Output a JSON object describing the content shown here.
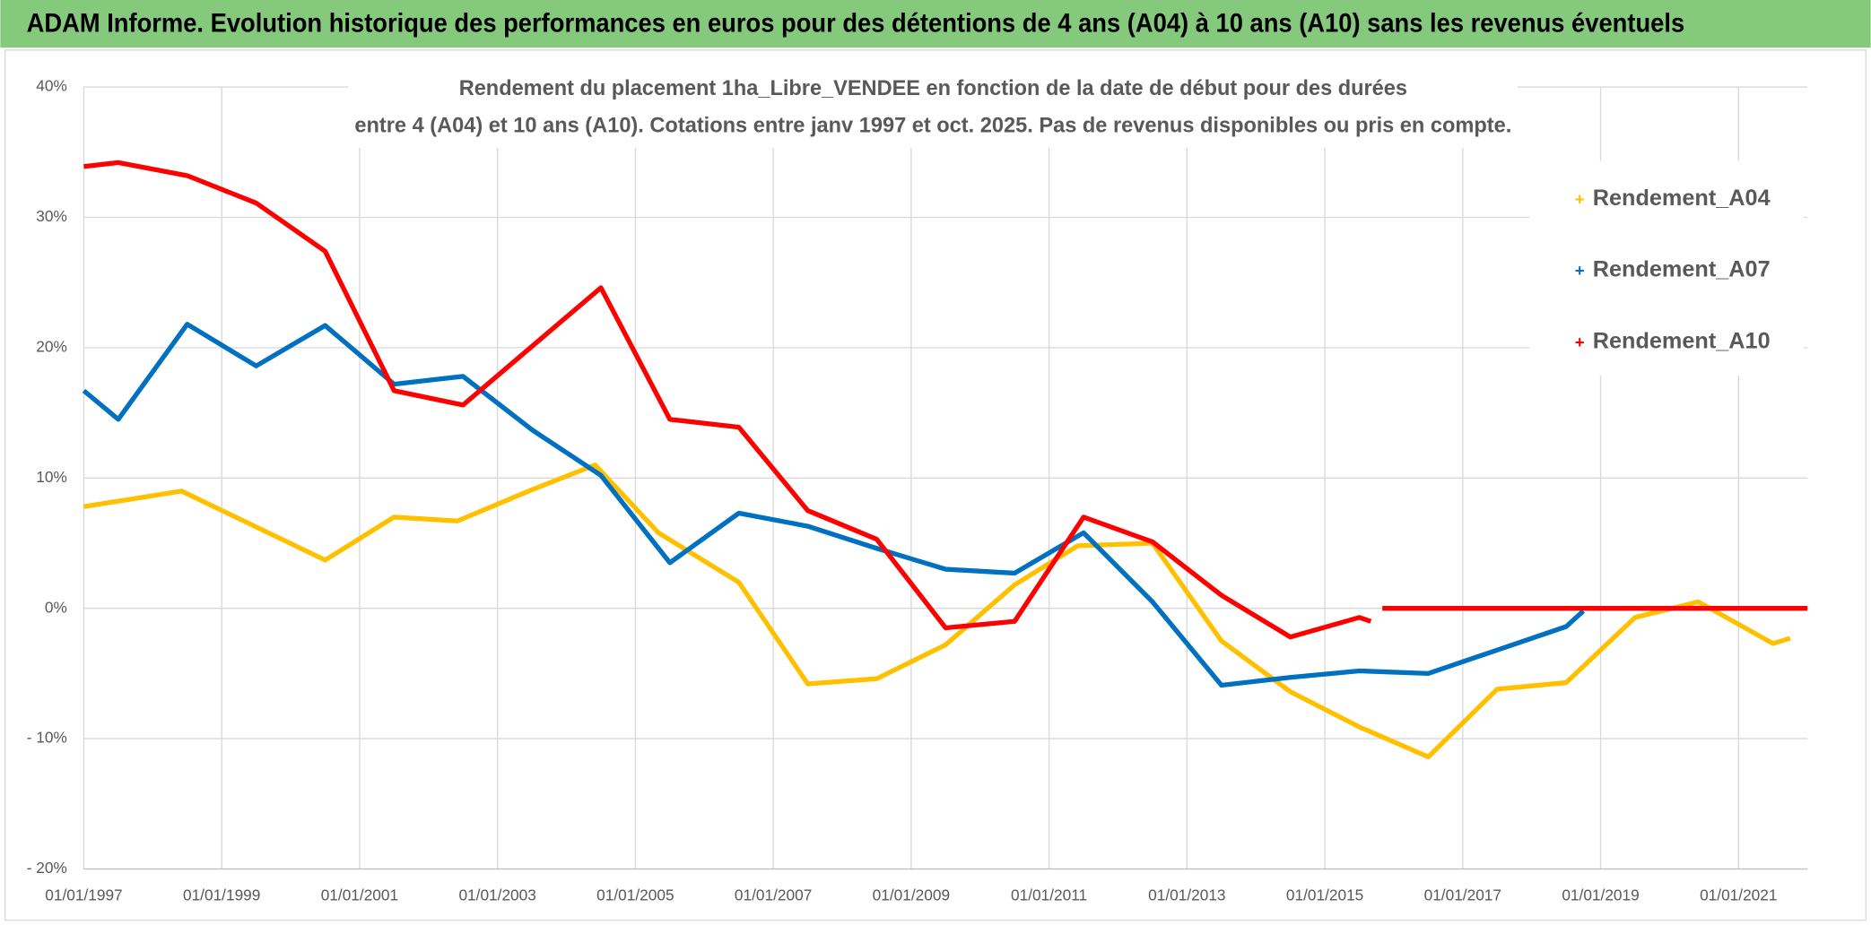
{
  "heading": "ADAM Informe. Evolution historique des performances en euros pour des détentions de 4 ans (A04) à 10 ans (A10) sans les revenus éventuels",
  "chart_data": {
    "type": "line",
    "title": [
      "Rendement du placement 1ha_Libre_VENDEE en fonction de la date de début pour des durées",
      "entre 4 (A04) et 10 ans (A10). Cotations entre janv 1997 et oct. 2025. Pas de revenus disponibles ou pris en compte."
    ],
    "xlim": [
      "01/01/1997",
      "01/01/2022"
    ],
    "xticks": [
      "01/01/1997",
      "01/01/1999",
      "01/01/2001",
      "01/01/2003",
      "01/01/2005",
      "01/01/2007",
      "01/01/2009",
      "01/01/2011",
      "01/01/2013",
      "01/01/2015",
      "01/01/2017",
      "01/01/2019",
      "01/01/2021"
    ],
    "ylim": [
      -20,
      40
    ],
    "yticks": [
      {
        "value": -20,
        "label": "- 20%"
      },
      {
        "value": -10,
        "label": "- 10%"
      },
      {
        "value": 0,
        "label": "0%"
      },
      {
        "value": 10,
        "label": "10%"
      },
      {
        "value": 20,
        "label": "20%"
      },
      {
        "value": 30,
        "label": "30%"
      },
      {
        "value": 40,
        "label": "40%"
      }
    ],
    "grid": true,
    "legend": "right",
    "series": [
      {
        "name": "Rendement_A04",
        "color": "#ffc000",
        "x": [
          "01/01/1997",
          "01/06/1998",
          "01/07/2000",
          "01/07/2001",
          "01/06/2002",
          "01/07/2003",
          "01/06/2004",
          "01/05/2005",
          "01/07/2006",
          "01/07/2007",
          "01/07/2008",
          "01/07/2009",
          "01/07/2010",
          "01/06/2011",
          "01/07/2012",
          "01/07/2013",
          "01/07/2014",
          "01/07/2015",
          "01/07/2016",
          "01/07/2017",
          "01/07/2018",
          "01/07/2019",
          "01/06/2020",
          "01/07/2021",
          "01/10/2021"
        ],
        "values": [
          7.8,
          9.0,
          3.7,
          7.0,
          6.7,
          9.1,
          11.0,
          5.8,
          2.0,
          -5.8,
          -5.4,
          -2.8,
          1.8,
          4.8,
          5.0,
          -2.5,
          -6.4,
          -9.1,
          -11.4,
          -6.2,
          -5.7,
          -0.7,
          0.5,
          -2.7,
          -2.3
        ]
      },
      {
        "name": "Rendement_A07",
        "color": "#0070c0",
        "x": [
          "01/01/1997",
          "01/07/1997",
          "01/07/1998",
          "01/07/1999",
          "01/07/2000",
          "01/07/2001",
          "01/07/2002",
          "01/07/2003",
          "01/07/2004",
          "01/07/2005",
          "01/07/2006",
          "01/07/2007",
          "01/07/2008",
          "01/07/2009",
          "01/07/2010",
          "01/07/2011",
          "01/07/2012",
          "01/07/2013",
          "01/07/2014",
          "01/07/2015",
          "01/07/2016",
          "01/07/2017",
          "01/07/2018",
          "01/10/2018"
        ],
        "values": [
          16.7,
          14.5,
          21.8,
          18.6,
          21.7,
          17.2,
          17.8,
          13.7,
          10.2,
          3.5,
          7.3,
          6.3,
          4.6,
          3.0,
          2.7,
          5.8,
          0.5,
          -5.9,
          -5.3,
          -4.8,
          -5.0,
          -3.2,
          -1.4,
          -0.2
        ]
      },
      {
        "name": "Rendement_A10",
        "color": "#ff0000",
        "x": [
          "01/01/1997",
          "01/07/1997",
          "01/07/1998",
          "01/07/1999",
          "01/07/2000",
          "01/07/2001",
          "01/07/2002",
          "01/07/2003",
          "01/07/2004",
          "01/07/2005",
          "01/07/2006",
          "01/07/2007",
          "01/07/2008",
          "01/07/2009",
          "01/07/2010",
          "01/07/2011",
          "01/07/2012",
          "01/07/2013",
          "01/07/2014",
          "01/07/2015",
          "01/09/2015",
          "01/10/2015",
          "01/11/2015",
          "01/01/2022"
        ],
        "values": [
          33.9,
          34.2,
          33.2,
          31.1,
          27.4,
          16.7,
          15.6,
          20.1,
          24.6,
          14.5,
          13.9,
          7.5,
          5.3,
          -1.5,
          -1.0,
          7.0,
          5.1,
          1.0,
          -2.2,
          -0.7,
          -1.0,
          null,
          0,
          0
        ]
      }
    ]
  }
}
